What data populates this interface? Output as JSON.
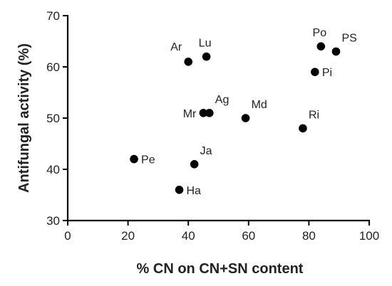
{
  "chart_data": {
    "type": "scatter",
    "xlabel": "% CN on CN+SN content",
    "ylabel": "Antifungal activity (%)",
    "xlim": [
      0,
      100
    ],
    "ylim": [
      30,
      70
    ],
    "xticks": [
      0,
      20,
      40,
      60,
      80,
      100
    ],
    "yticks": [
      30,
      40,
      50,
      60,
      70
    ],
    "grid": false,
    "points": [
      {
        "label": "Ar",
        "x": 40,
        "y": 61,
        "label_pos": "top-left"
      },
      {
        "label": "Lu",
        "x": 46,
        "y": 62,
        "label_pos": "top"
      },
      {
        "label": "Po",
        "x": 84,
        "y": 64,
        "label_pos": "top"
      },
      {
        "label": "PS",
        "x": 89,
        "y": 63,
        "label_pos": "top-right"
      },
      {
        "label": "Pi",
        "x": 82,
        "y": 59,
        "label_pos": "right"
      },
      {
        "label": "Mr",
        "x": 45,
        "y": 51,
        "label_pos": "left"
      },
      {
        "label": "Ag",
        "x": 47,
        "y": 51,
        "label_pos": "top-right"
      },
      {
        "label": "Md",
        "x": 59,
        "y": 50,
        "label_pos": "top-right"
      },
      {
        "label": "Ri",
        "x": 78,
        "y": 48,
        "label_pos": "top-right"
      },
      {
        "label": "Pe",
        "x": 22,
        "y": 42,
        "label_pos": "right"
      },
      {
        "label": "Ja",
        "x": 42,
        "y": 41,
        "label_pos": "top-right"
      },
      {
        "label": "Ha",
        "x": 37,
        "y": 36,
        "label_pos": "right"
      }
    ]
  }
}
